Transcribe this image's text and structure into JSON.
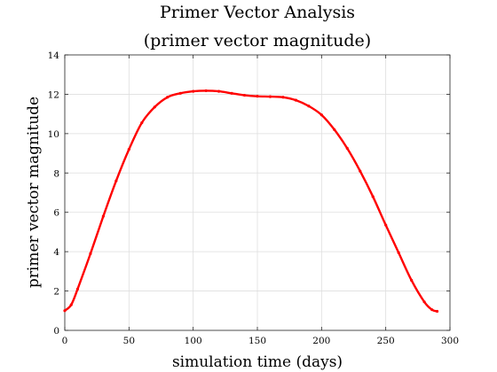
{
  "chart_data": {
    "type": "line",
    "title": "Primer Vector Analysis",
    "subtitle": "(primer vector magnitude)",
    "xlabel": "simulation time (days)",
    "ylabel": "primer vector magnitude",
    "xlim": [
      0,
      300
    ],
    "ylim": [
      0,
      14
    ],
    "xticks": [
      "0",
      "50",
      "100",
      "150",
      "200",
      "250",
      "300"
    ],
    "yticks": [
      "0",
      "2",
      "4",
      "6",
      "8",
      "10",
      "12",
      "14"
    ],
    "grid": true,
    "series": [
      {
        "color": "#ff0000",
        "marker": "dot",
        "x": [
          0,
          5,
          10,
          20,
          30,
          40,
          50,
          60,
          70,
          80,
          90,
          100,
          110,
          120,
          130,
          140,
          150,
          160,
          170,
          180,
          190,
          200,
          210,
          220,
          230,
          240,
          250,
          260,
          270,
          280,
          286,
          290
        ],
        "y": [
          1.0,
          1.3,
          2.1,
          3.9,
          5.8,
          7.6,
          9.2,
          10.55,
          11.35,
          11.85,
          12.05,
          12.15,
          12.18,
          12.15,
          12.05,
          11.95,
          11.9,
          11.88,
          11.85,
          11.7,
          11.4,
          10.95,
          10.2,
          9.25,
          8.1,
          6.8,
          5.35,
          3.95,
          2.55,
          1.45,
          1.05,
          0.97
        ]
      }
    ]
  }
}
